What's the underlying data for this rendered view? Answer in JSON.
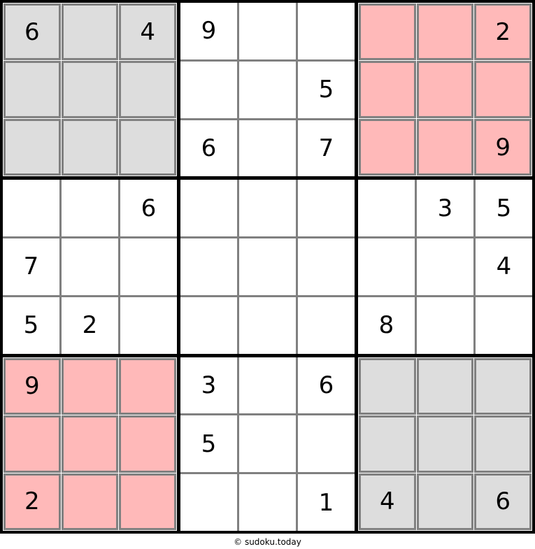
{
  "footer": {
    "text": "© sudoku.today"
  },
  "colors": {
    "box_gray": "#DDDDDD",
    "box_pink": "#FFB9B9",
    "line_gray": "#808080",
    "thick_line": "#000000",
    "cell_white": "#FFFFFF",
    "digit": "#000000"
  },
  "grid": {
    "size": 9,
    "box_colors": [
      "gray",
      "white",
      "pink",
      "white",
      "white",
      "white",
      "pink",
      "white",
      "gray"
    ],
    "rows": [
      [
        "6",
        "",
        "4",
        "9",
        "",
        "",
        "",
        "",
        "2"
      ],
      [
        "",
        "",
        "",
        "",
        "",
        "5",
        "",
        "",
        ""
      ],
      [
        "",
        "",
        "",
        "6",
        "",
        "7",
        "",
        "",
        "9"
      ],
      [
        "",
        "",
        "6",
        "",
        "",
        "",
        "",
        "3",
        "5"
      ],
      [
        "7",
        "",
        "",
        "",
        "",
        "",
        "",
        "",
        "4"
      ],
      [
        "5",
        "2",
        "",
        "",
        "",
        "",
        "8",
        "",
        ""
      ],
      [
        "9",
        "",
        "",
        "3",
        "",
        "6",
        "",
        "",
        ""
      ],
      [
        "",
        "",
        "",
        "5",
        "",
        "",
        "",
        "",
        ""
      ],
      [
        "2",
        "",
        "",
        "",
        "",
        "1",
        "4",
        "",
        "6"
      ]
    ]
  }
}
